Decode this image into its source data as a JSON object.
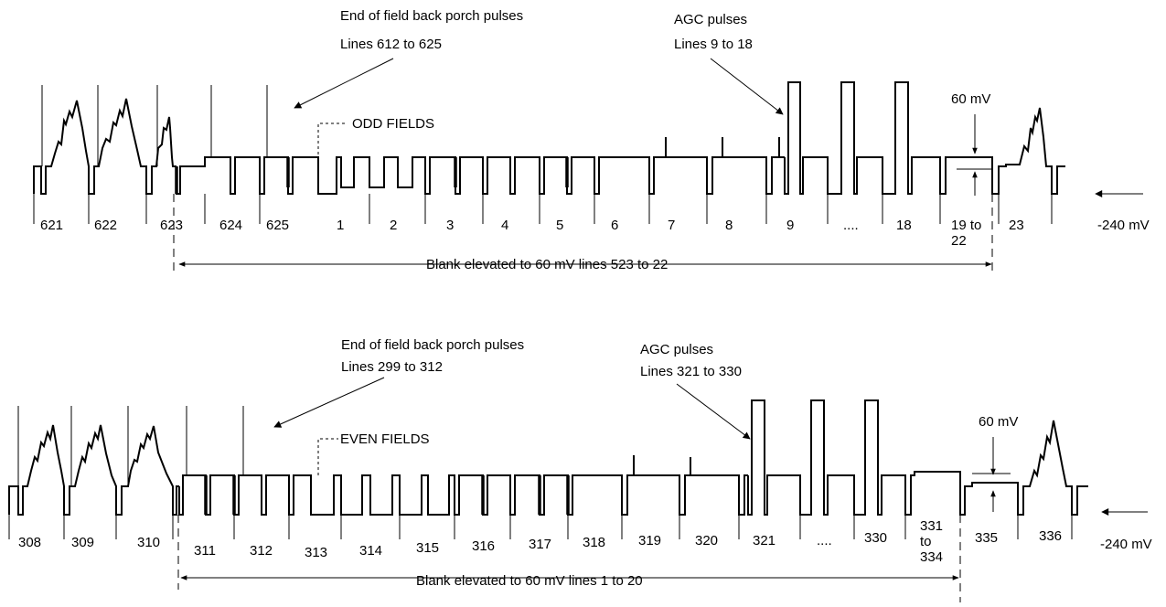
{
  "odd": {
    "backporch_title": "End of field back porch pulses",
    "backporch_lines": "Lines 612 to 625",
    "agc_title": "AGC pulses",
    "agc_lines": "Lines 9 to 18",
    "field_label": "ODD FIELDS",
    "mv_label": "60 mV",
    "neg_label": "-240 mV",
    "blank_label": "Blank elevated to 60 mV lines 523 to 22",
    "lines": [
      "621",
      "622",
      "623",
      "624",
      "625",
      "1",
      "2",
      "3",
      "4",
      "5",
      "6",
      "7",
      "8",
      "9",
      "....",
      "18",
      "19 to",
      "22",
      "23"
    ]
  },
  "even": {
    "backporch_title": "End of field back porch pulses",
    "backporch_lines": "Lines 299 to 312",
    "agc_title": "AGC pulses",
    "agc_lines": "Lines 321 to 330",
    "field_label": "EVEN FIELDS",
    "mv_label": "60 mV",
    "neg_label": "-240 mV",
    "blank_label": "Blank elevated to 60 mV lines 1 to 20",
    "lines": [
      "308",
      "309",
      "310",
      "311",
      "312",
      "313",
      "314",
      "315",
      "316",
      "317",
      "318",
      "319",
      "320",
      "321",
      "....",
      "330",
      "331",
      "to",
      "334",
      "335",
      "336"
    ]
  }
}
